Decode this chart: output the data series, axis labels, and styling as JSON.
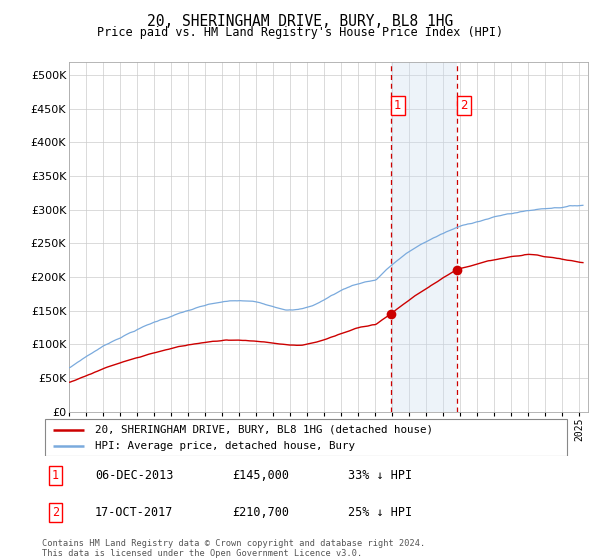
{
  "title": "20, SHERINGHAM DRIVE, BURY, BL8 1HG",
  "subtitle": "Price paid vs. HM Land Registry's House Price Index (HPI)",
  "hpi_color": "#7aaadd",
  "property_color": "#cc0000",
  "background_color": "#ffffff",
  "grid_color": "#cccccc",
  "highlight_fill": "#ccddf0",
  "dashed_line_color": "#cc0000",
  "ylim": [
    0,
    520000
  ],
  "yticks": [
    0,
    50000,
    100000,
    150000,
    200000,
    250000,
    300000,
    350000,
    400000,
    450000,
    500000
  ],
  "sale1_date": 2013.92,
  "sale1_price": 145000,
  "sale2_date": 2017.79,
  "sale2_price": 210700,
  "legend_line1": "20, SHERINGHAM DRIVE, BURY, BL8 1HG (detached house)",
  "legend_line2": "HPI: Average price, detached house, Bury",
  "table_row1": [
    "1",
    "06-DEC-2013",
    "£145,000",
    "33% ↓ HPI"
  ],
  "table_row2": [
    "2",
    "17-OCT-2017",
    "£210,700",
    "25% ↓ HPI"
  ],
  "footer": "Contains HM Land Registry data © Crown copyright and database right 2024.\nThis data is licensed under the Open Government Licence v3.0."
}
